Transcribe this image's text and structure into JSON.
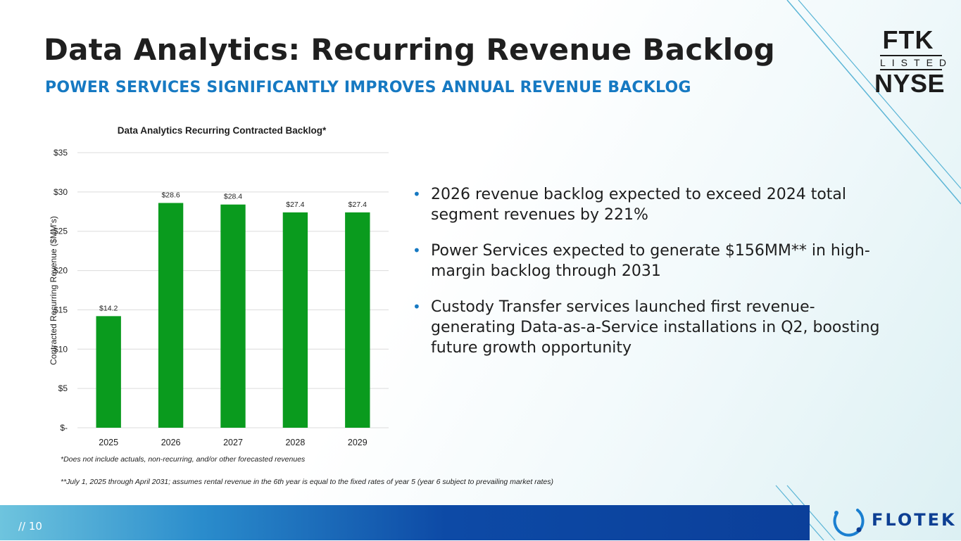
{
  "title": "Data Analytics: Recurring Revenue Backlog",
  "subtitle": "POWER SERVICES SIGNIFICANTLY IMPROVES ANNUAL REVENUE BACKLOG",
  "badge": {
    "line1": "FTK",
    "line2": "LISTED",
    "line3": "NYSE"
  },
  "bullets": [
    "2026 revenue backlog expected to exceed 2024 total segment revenues by 221%",
    "Power Services expected to generate $156MM** in high-margin backlog through 2031",
    "Custody Transfer services launched first revenue-generating Data-as-a-Service installations in Q2, boosting future growth opportunity"
  ],
  "bullet_symbol": "•",
  "footnotes": {
    "note1": "*Does not include actuals, non-recurring, and/or other forecasted revenues",
    "note2": "**July 1, 2025 through April 2031; assumes rental revenue in the 6th year  is equal to the fixed rates of year 5 (year 6  subject to prevailing market rates)"
  },
  "footer": {
    "page": "// 10",
    "brand": "FLOTEK"
  },
  "colors": {
    "bar": "#0a9b1e",
    "accent": "#1679c2",
    "footer_dark": "#0b3f9a"
  },
  "chart_data": {
    "type": "bar",
    "title": "Data Analytics Recurring Contracted Backlog*",
    "ylabel": "Contracted Recurring Revenue ($MM's)",
    "xlabel": "",
    "categories": [
      "2025",
      "2026",
      "2027",
      "2028",
      "2029"
    ],
    "values": [
      14.2,
      28.6,
      28.4,
      27.4,
      27.4
    ],
    "data_labels": [
      "$14.2",
      "$28.6",
      "$28.4",
      "$27.4",
      "$27.4"
    ],
    "ylim": [
      0,
      35
    ],
    "yticks": [
      0,
      5,
      10,
      15,
      20,
      25,
      30,
      35
    ],
    "ytick_labels": [
      "$-",
      "$5",
      "$10",
      "$15",
      "$20",
      "$25",
      "$30",
      "$35"
    ],
    "grid": true,
    "legend": "none"
  }
}
